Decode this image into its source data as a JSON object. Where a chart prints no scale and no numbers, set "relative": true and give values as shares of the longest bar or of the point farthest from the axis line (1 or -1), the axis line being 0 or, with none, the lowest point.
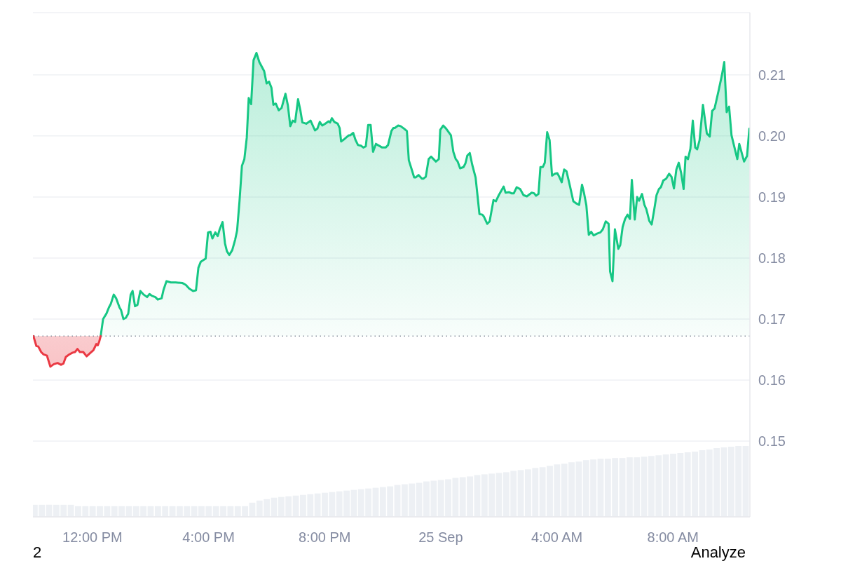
{
  "chart_data": [
    {
      "type": "area",
      "annotations": [
        "2",
        "Analyze"
      ],
      "series": [
        {
          "type": "line",
          "color": "#ea3943",
          "x": [
            "--09-24T09:58",
            "--09-24T10:04",
            "--09-24T10:08",
            "--09-24T10:14",
            "--09-24T10:19",
            "--09-24T10:26",
            "--09-24T10:33",
            "--09-24T10:40",
            "--09-24T10:48",
            "--09-24T10:55",
            "--09-24T11:00",
            "--09-24T11:05",
            "--09-24T11:12",
            "--09-24T11:19",
            "--09-24T11:24",
            "--09-24T11:29",
            "--09-24T11:34",
            "--09-24T11:41",
            "--09-24T11:48",
            "--09-24T11:55",
            "--09-24T12:02",
            "--09-24T12:05",
            "--09-24T12:08",
            "--09-24T12:11",
            "--09-24T12:14",
            "--09-24T12:17"
          ],
          "values": [
            0.1672,
            0.1656,
            0.1655,
            0.1646,
            0.1642,
            0.164,
            0.1622,
            0.1626,
            0.1628,
            0.1625,
            0.1627,
            0.1638,
            0.1642,
            0.1645,
            0.1646,
            0.1651,
            0.1646,
            0.1646,
            0.1639,
            0.1644,
            0.1649,
            0.1654,
            0.1659,
            0.1657,
            0.1663,
            0.1672
          ],
          "lower": [
            0.1672,
            0.1656,
            0.1655,
            0.1646,
            0.1642,
            0.164,
            0.1622,
            0.1626,
            0.1628,
            0.1625,
            0.1627,
            0.1638,
            0.1642,
            0.1645,
            0.1646,
            0.1651,
            0.1646,
            0.1646,
            0.1639,
            0.1644,
            0.1649,
            0.1654,
            0.1659,
            0.1657,
            0.1663,
            0.1672
          ],
          "upper": [
            0.1672,
            0.1672,
            0.1672,
            0.1672,
            0.1672,
            0.1672,
            0.1672,
            0.1672,
            0.1672,
            0.1672,
            0.1672,
            0.1672,
            0.1672,
            0.1672,
            0.1672,
            0.1672,
            0.1672,
            0.1672,
            0.1672,
            0.1672,
            0.1672,
            0.1672,
            0.1672,
            0.1672,
            0.1672,
            0.1672
          ]
        },
        {
          "color": "#16c784",
          "x": [
            "--09-24T12:17",
            "--09-24T12:22",
            "--09-24T12:29",
            "--09-24T12:34",
            "--09-24T12:38",
            "--09-24T12:44",
            "--09-24T12:49",
            "--09-24T12:56",
            "--09-24T12:59",
            "--09-24T13:04",
            "--09-24T13:09",
            "--09-24T13:14",
            "--09-24T13:19",
            "--09-24T13:23",
            "--09-24T13:28",
            "--09-24T13:33",
            "--09-24T13:39",
            "--09-24T13:46",
            "--09-24T13:53",
            "--09-24T13:58",
            "--09-24T14:03",
            "--09-24T14:10",
            "--09-24T14:15",
            "--09-24T14:23",
            "--09-24T14:27",
            "--09-24T14:33",
            "--09-24T14:42",
            "--09-24T14:52",
            "--09-24T15:06",
            "--09-24T15:13",
            "--09-24T15:20",
            "--09-24T15:28",
            "--09-24T15:34",
            "--09-24T15:39",
            "--09-24T15:44",
            "--09-24T15:54",
            "--09-24T15:59",
            "--09-24T16:04",
            "--09-24T16:08",
            "--09-24T16:14",
            "--09-24T16:19",
            "--09-24T16:23",
            "--09-24T16:29",
            "--09-24T16:34",
            "--09-24T16:38",
            "--09-24T16:43",
            "--09-24T16:49",
            "--09-24T16:55",
            "--09-24T16:59",
            "--09-24T17:04",
            "--09-24T17:09",
            "--09-24T17:14",
            "--09-24T17:19",
            "--09-24T17:23",
            "--09-24T17:28",
            "--09-24T17:33",
            "--09-24T17:39",
            "--09-24T17:45",
            "--09-24T17:55",
            "--09-24T18:00",
            "--09-24T18:05",
            "--09-24T18:10",
            "--09-24T18:14",
            "--09-24T18:19",
            "--09-24T18:25",
            "--09-24T18:31",
            "--09-24T18:39",
            "--09-24T18:44",
            "--09-24T18:49",
            "--09-24T18:54",
            "--09-24T18:59",
            "--09-24T19:05",
            "--09-24T19:10",
            "--09-24T19:14",
            "--09-24T19:22",
            "--09-24T19:31",
            "--09-24T19:40",
            "--09-24T19:45",
            "--09-24T19:50",
            "--09-24T19:55",
            "--09-24T20:01",
            "--09-24T20:08",
            "--09-24T20:11",
            "--09-24T20:15",
            "--09-24T20:20",
            "--09-24T20:27",
            "--09-24T20:31",
            "--09-24T20:34",
            "--09-24T20:41",
            "--09-24T20:50",
            "--09-24T20:53",
            "--09-24T20:59",
            "--09-24T21:04",
            "--09-24T21:09",
            "--09-24T21:15",
            "--09-24T21:20",
            "--09-24T21:25",
            "--09-24T21:30",
            "--09-24T21:35",
            "--09-24T21:40",
            "--09-24T21:46",
            "--09-24T21:50",
            "--09-24T21:59",
            "--09-24T22:06",
            "--09-24T22:11",
            "--09-24T22:18",
            "--09-24T22:22",
            "--09-24T22:25",
            "--09-24T22:32",
            "--09-24T22:37",
            "--09-24T22:44",
            "--09-24T22:50",
            "--09-24T22:54",
            "--09-24T23:00",
            "--09-24T23:05",
            "--09-24T23:08",
            "--09-24T23:14",
            "--09-24T23:21",
            "--09-24T23:24",
            "--09-24T23:29",
            "--09-24T23:35",
            "--09-24T23:40",
            "--09-24T23:50",
            "--09-24T23:56",
            "--09-24T23:59",
            "--09-25T00:05",
            "--09-25T00:11",
            "--09-25T00:21",
            "--09-25T00:26",
            "--09-25T00:31",
            "--09-25T00:35",
            "--09-25T00:40",
            "--09-25T00:47",
            "--09-25T00:51",
            "--09-25T00:55",
            "--09-25T01:00",
            "--09-25T01:05",
            "--09-25T01:12",
            "--09-25T01:20",
            "--09-25T01:26",
            "--09-25T01:29",
            "--09-25T01:36",
            "--09-25T01:41",
            "--09-25T01:49",
            "--09-25T01:54",
            "--09-25T02:00",
            "--09-25T02:10",
            "--09-25T02:14",
            "--09-25T02:21",
            "--09-25T02:26",
            "--09-25T02:31",
            "--09-25T02:37",
            "--09-25T02:44",
            "--09-25T02:51",
            "--09-25T02:58",
            "--09-25T03:08",
            "--09-25T03:13",
            "--09-25T03:17",
            "--09-25T03:22",
            "--09-25T03:26",
            "--09-25T03:31",
            "--09-25T03:35",
            "--09-25T03:40",
            "--09-25T03:45",
            "--09-25T03:50",
            "--09-25T03:56",
            "--09-25T04:01",
            "--09-25T04:05",
            "--09-25T04:10",
            "--09-25T04:15",
            "--09-25T04:20",
            "--09-25T04:27",
            "--09-25T04:34",
            "--09-25T04:41",
            "--09-25T04:46",
            "--09-25T04:52",
            "--09-25T04:56",
            "--09-25T05:01",
            "--09-25T05:06",
            "--09-25T05:11",
            "--09-25T05:16",
            "--09-25T05:23",
            "--09-25T05:30",
            "--09-25T05:35",
            "--09-25T05:41",
            "--09-25T05:47",
            "--09-25T05:50",
            "--09-25T05:55",
            "--09-25T06:00",
            "--09-25T06:07",
            "--09-25T06:11",
            "--09-25T06:16",
            "--09-25T06:21",
            "--09-25T06:26",
            "--09-25T06:31",
            "--09-25T06:35",
            "--09-25T06:41",
            "--09-25T06:46",
            "--09-25T06:50",
            "--09-25T06:56",
            "--09-25T07:01",
            "--09-25T07:05",
            "--09-25T07:11",
            "--09-25T07:16",
            "--09-25T07:21",
            "--09-25T07:26",
            "--09-25T07:31",
            "--09-25T07:35",
            "--09-25T07:40",
            "--09-25T07:46",
            "--09-25T07:52",
            "--09-25T07:57",
            "--09-25T08:02",
            "--09-25T08:07",
            "--09-25T08:12",
            "--09-25T08:17",
            "--09-25T08:22",
            "--09-25T08:26",
            "--09-25T08:31",
            "--09-25T08:36",
            "--09-25T08:41",
            "--09-25T08:46",
            "--09-25T08:50",
            "--09-25T08:55",
            "--09-25T09:02",
            "--09-25T09:10",
            "--09-25T09:16",
            "--09-25T09:21",
            "--09-25T09:26",
            "--09-25T09:34",
            "--09-25T09:41",
            "--09-25T09:46",
            "--09-25T09:51",
            "--09-25T09:56",
            "--09-25T10:01",
            "--09-25T10:13",
            "--09-25T10:17",
            "--09-25T10:27",
            "--09-25T10:33",
            "--09-25T10:38"
          ],
          "values": [
            0.1672,
            0.17,
            0.1709,
            0.1719,
            0.1725,
            0.174,
            0.1734,
            0.1719,
            0.1715,
            0.17,
            0.1702,
            0.1709,
            0.174,
            0.1746,
            0.1721,
            0.1723,
            0.1746,
            0.174,
            0.1736,
            0.1741,
            0.1738,
            0.1736,
            0.1732,
            0.1734,
            0.1748,
            0.1762,
            0.176,
            0.176,
            0.1759,
            0.1756,
            0.175,
            0.1746,
            0.1747,
            0.1784,
            0.1794,
            0.1799,
            0.1842,
            0.1843,
            0.1832,
            0.1842,
            0.1836,
            0.1847,
            0.1859,
            0.1824,
            0.1811,
            0.1805,
            0.1813,
            0.183,
            0.1845,
            0.1893,
            0.1951,
            0.1962,
            0.1997,
            0.2062,
            0.2052,
            0.2124,
            0.2136,
            0.2121,
            0.2106,
            0.2086,
            0.2089,
            0.2079,
            0.2051,
            0.2053,
            0.2042,
            0.2046,
            0.2069,
            0.205,
            0.2016,
            0.2025,
            0.2023,
            0.206,
            0.2041,
            0.2022,
            0.202,
            0.2025,
            0.2009,
            0.2012,
            0.2023,
            0.2017,
            0.202,
            0.2024,
            0.2022,
            0.2029,
            0.2023,
            0.202,
            0.2013,
            0.1991,
            0.1995,
            0.2001,
            0.2001,
            0.2005,
            0.1993,
            0.1985,
            0.1984,
            0.1981,
            0.1983,
            0.2018,
            0.2018,
            0.1974,
            0.1987,
            0.1985,
            0.1981,
            0.1981,
            0.1985,
            0.2008,
            0.2013,
            0.2013,
            0.2017,
            0.2016,
            0.2012,
            0.2008,
            0.196,
            0.1945,
            0.1932,
            0.1932,
            0.1936,
            0.193,
            0.193,
            0.1933,
            0.1962,
            0.1966,
            0.1958,
            0.1962,
            0.201,
            0.2017,
            0.2012,
            0.2001,
            0.1974,
            0.1962,
            0.1958,
            0.1947,
            0.1949,
            0.1955,
            0.1968,
            0.1972,
            0.1953,
            0.1932,
            0.1872,
            0.1871,
            0.1868,
            0.1856,
            0.186,
            0.1895,
            0.1893,
            0.1903,
            0.1917,
            0.1907,
            0.1908,
            0.1906,
            0.1906,
            0.1916,
            0.1913,
            0.1903,
            0.1901,
            0.1907,
            0.1906,
            0.1902,
            0.1905,
            0.1949,
            0.1949,
            0.1956,
            0.2006,
            0.1993,
            0.1935,
            0.1938,
            0.1939,
            0.1933,
            0.1924,
            0.1945,
            0.1942,
            0.1918,
            0.1893,
            0.1889,
            0.1887,
            0.192,
            0.1907,
            0.1886,
            0.1838,
            0.1843,
            0.1837,
            0.184,
            0.1842,
            0.1847,
            0.186,
            0.1856,
            0.1778,
            0.1762,
            0.1847,
            0.1815,
            0.1821,
            0.1851,
            0.1864,
            0.1871,
            0.1864,
            0.1928,
            0.1863,
            0.19,
            0.1894,
            0.1905,
            0.1887,
            0.188,
            0.1861,
            0.1855,
            0.1878,
            0.1903,
            0.1913,
            0.1916,
            0.1927,
            0.193,
            0.1938,
            0.1933,
            0.1914,
            0.1945,
            0.1956,
            0.1939,
            0.1913,
            0.1966,
            0.1962,
            0.1979,
            0.2025,
            0.1981,
            0.1978,
            0.1993,
            0.2051,
            0.2004,
            0.1999,
            0.2041,
            0.2045,
            0.2073,
            0.2099,
            0.2121,
            0.2039,
            0.2048,
            0.2001,
            0.1962,
            0.1987,
            0.1958,
            0.1967,
            0.2012
          ]
        }
      ],
      "xlim": [
        "--09-24T09:57",
        "--09-25T10:39"
      ],
      "xticks": [
        {
          "value": "--09-24T12:00",
          "label": "12:00 PM"
        },
        {
          "value": "--09-24T16:00",
          "label": "4:00 PM"
        },
        {
          "value": "--09-24T20:00",
          "label": "8:00 PM"
        },
        {
          "value": "--09-25T00:00",
          "label": "25 Sep"
        },
        {
          "value": "--09-25T04:00",
          "label": "4:00 AM"
        },
        {
          "value": "--09-25T08:00",
          "label": "8:00 AM"
        }
      ],
      "ylim": [
        0.1376,
        0.2202
      ],
      "yticks": [
        0.15,
        0.16,
        0.17,
        0.18,
        0.19,
        {
          "value": 0.2,
          "label": "0.20"
        },
        0.21
      ],
      "grid": "y",
      "ref_lines": [
        {
          "axis": "y",
          "value": 0.1672,
          "color": "#8a919e",
          "line_style": "dotted"
        }
      ]
    },
    {
      "type": "bar",
      "relative": true,
      "color": "#edf0f4",
      "tick_labels": false,
      "xlim": [
        "--09-24T09:57",
        "--09-25T10:39"
      ],
      "x": [
        "--09-24T10:00",
        "--09-24T10:15",
        "--09-24T10:30",
        "--09-24T10:45",
        "--09-24T11:00",
        "--09-24T11:15",
        "--09-24T11:30",
        "--09-24T11:45",
        "--09-24T12:00",
        "--09-24T12:15",
        "--09-24T12:30",
        "--09-24T12:45",
        "--09-24T13:00",
        "--09-24T13:15",
        "--09-24T13:30",
        "--09-24T13:45",
        "--09-24T14:00",
        "--09-24T14:15",
        "--09-24T14:30",
        "--09-24T14:45",
        "--09-24T15:00",
        "--09-24T15:15",
        "--09-24T15:30",
        "--09-24T15:45",
        "--09-24T16:00",
        "--09-24T16:15",
        "--09-24T16:30",
        "--09-24T16:45",
        "--09-24T17:00",
        "--09-24T17:15",
        "--09-24T17:30",
        "--09-24T17:45",
        "--09-24T18:00",
        "--09-24T18:15",
        "--09-24T18:30",
        "--09-24T18:45",
        "--09-24T19:00",
        "--09-24T19:15",
        "--09-24T19:30",
        "--09-24T19:45",
        "--09-24T20:00",
        "--09-24T20:15",
        "--09-24T20:30",
        "--09-24T20:45",
        "--09-24T21:00",
        "--09-24T21:15",
        "--09-24T21:30",
        "--09-24T21:45",
        "--09-24T22:00",
        "--09-24T22:15",
        "--09-24T22:30",
        "--09-24T22:45",
        "--09-24T23:00",
        "--09-24T23:15",
        "--09-24T23:30",
        "--09-24T23:45",
        "--09-25T00:00",
        "--09-25T00:15",
        "--09-25T00:30",
        "--09-25T00:45",
        "--09-25T01:00",
        "--09-25T01:15",
        "--09-25T01:30",
        "--09-25T01:45",
        "--09-25T02:00",
        "--09-25T02:15",
        "--09-25T02:30",
        "--09-25T02:45",
        "--09-25T03:00",
        "--09-25T03:15",
        "--09-25T03:30",
        "--09-25T03:45",
        "--09-25T04:00",
        "--09-25T04:15",
        "--09-25T04:30",
        "--09-25T04:45",
        "--09-25T05:00",
        "--09-25T05:15",
        "--09-25T05:30",
        "--09-25T05:45",
        "--09-25T06:00",
        "--09-25T06:15",
        "--09-25T06:30",
        "--09-25T06:45",
        "--09-25T07:00",
        "--09-25T07:15",
        "--09-25T07:30",
        "--09-25T07:45",
        "--09-25T08:00",
        "--09-25T08:15",
        "--09-25T08:30",
        "--09-25T08:45",
        "--09-25T09:00",
        "--09-25T09:15",
        "--09-25T09:30",
        "--09-25T09:45",
        "--09-25T10:00",
        "--09-25T10:15",
        "--09-25T10:30"
      ],
      "values": [
        0.17,
        0.17,
        0.17,
        0.17,
        0.17,
        0.17,
        0.15,
        0.15,
        0.15,
        0.15,
        0.15,
        0.15,
        0.15,
        0.15,
        0.15,
        0.15,
        0.15,
        0.15,
        0.15,
        0.15,
        0.15,
        0.15,
        0.15,
        0.15,
        0.15,
        0.15,
        0.15,
        0.15,
        0.15,
        0.15,
        0.2,
        0.23,
        0.25,
        0.27,
        0.28,
        0.29,
        0.3,
        0.31,
        0.32,
        0.33,
        0.34,
        0.35,
        0.36,
        0.37,
        0.38,
        0.39,
        0.4,
        0.41,
        0.42,
        0.43,
        0.45,
        0.46,
        0.47,
        0.48,
        0.5,
        0.51,
        0.52,
        0.53,
        0.55,
        0.56,
        0.57,
        0.59,
        0.6,
        0.61,
        0.62,
        0.63,
        0.65,
        0.66,
        0.67,
        0.69,
        0.7,
        0.72,
        0.74,
        0.75,
        0.77,
        0.78,
        0.8,
        0.81,
        0.82,
        0.82,
        0.83,
        0.83,
        0.84,
        0.84,
        0.85,
        0.86,
        0.87,
        0.88,
        0.89,
        0.9,
        0.91,
        0.92,
        0.94,
        0.95,
        0.97,
        0.98,
        0.99,
        1,
        1
      ]
    }
  ]
}
